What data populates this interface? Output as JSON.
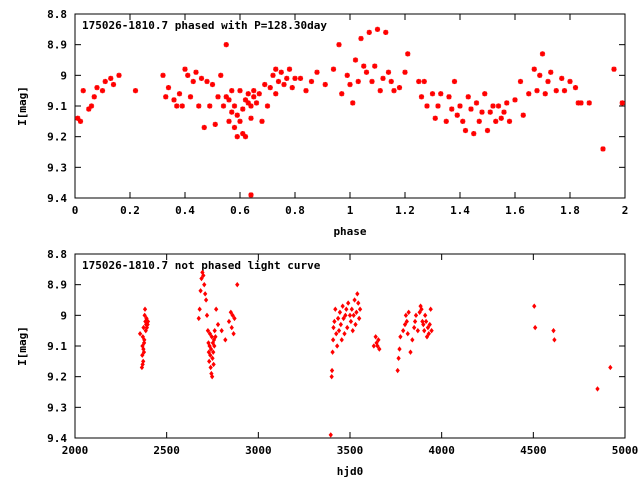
{
  "colors": {
    "points": "#ff0000",
    "axes": "#000000",
    "background": "#ffffff"
  },
  "chart_data": [
    {
      "type": "scatter",
      "title": "175026-1810.7 phased with P=128.30day",
      "xlabel": "phase",
      "ylabel": "I[mag]",
      "xlim": [
        0,
        2
      ],
      "ylim": [
        8.8,
        9.4
      ],
      "y_inverted": true,
      "grid": false,
      "xticks": [
        0,
        0.2,
        0.4,
        0.6,
        0.8,
        1,
        1.2,
        1.4,
        1.6,
        1.8,
        2
      ],
      "xtick_labels": [
        "0",
        "0.2",
        "0.4",
        "0.6",
        "0.8",
        "1",
        "1.2",
        "1.4",
        "1.6",
        "1.8",
        "2"
      ],
      "yticks": [
        8.8,
        8.9,
        9.0,
        9.1,
        9.2,
        9.3,
        9.4
      ],
      "ytick_labels": [
        "8.8",
        "8.9",
        "9",
        "9.1",
        "9.2",
        "9.3",
        "9.4"
      ],
      "marker": "star",
      "points": [
        [
          0.01,
          9.14
        ],
        [
          0.02,
          9.15
        ],
        [
          0.03,
          9.05
        ],
        [
          0.05,
          9.11
        ],
        [
          0.06,
          9.1
        ],
        [
          0.07,
          9.07
        ],
        [
          0.08,
          9.04
        ],
        [
          0.1,
          9.05
        ],
        [
          0.11,
          9.02
        ],
        [
          0.13,
          9.01
        ],
        [
          0.14,
          9.03
        ],
        [
          0.16,
          9.0
        ],
        [
          0.22,
          9.05
        ],
        [
          0.32,
          9.0
        ],
        [
          0.33,
          9.07
        ],
        [
          0.34,
          9.04
        ],
        [
          0.36,
          9.08
        ],
        [
          0.37,
          9.1
        ],
        [
          0.38,
          9.06
        ],
        [
          0.39,
          9.1
        ],
        [
          0.4,
          8.98
        ],
        [
          0.41,
          9.0
        ],
        [
          0.42,
          9.07
        ],
        [
          0.43,
          9.02
        ],
        [
          0.44,
          8.99
        ],
        [
          0.45,
          9.1
        ],
        [
          0.46,
          9.01
        ],
        [
          0.47,
          9.17
        ],
        [
          0.48,
          9.02
        ],
        [
          0.49,
          9.1
        ],
        [
          0.5,
          9.03
        ],
        [
          0.51,
          9.16
        ],
        [
          0.52,
          9.07
        ],
        [
          0.53,
          9.0
        ],
        [
          0.54,
          9.1
        ],
        [
          0.55,
          9.07
        ],
        [
          0.56,
          9.15
        ],
        [
          0.56,
          9.08
        ],
        [
          0.57,
          9.12
        ],
        [
          0.57,
          9.05
        ],
        [
          0.58,
          9.1
        ],
        [
          0.58,
          9.17
        ],
        [
          0.59,
          9.13
        ],
        [
          0.59,
          9.2
        ],
        [
          0.6,
          9.05
        ],
        [
          0.6,
          9.15
        ],
        [
          0.61,
          9.11
        ],
        [
          0.61,
          9.19
        ],
        [
          0.62,
          9.08
        ],
        [
          0.62,
          9.2
        ],
        [
          0.63,
          9.06
        ],
        [
          0.63,
          9.09
        ],
        [
          0.64,
          9.1
        ],
        [
          0.64,
          9.14
        ],
        [
          0.65,
          9.05
        ],
        [
          0.65,
          9.07
        ],
        [
          0.66,
          9.09
        ],
        [
          0.67,
          9.06
        ],
        [
          0.68,
          9.15
        ],
        [
          0.69,
          9.03
        ],
        [
          0.7,
          9.1
        ],
        [
          0.71,
          9.04
        ],
        [
          0.72,
          9.0
        ],
        [
          0.73,
          8.98
        ],
        [
          0.73,
          9.06
        ],
        [
          0.74,
          9.02
        ],
        [
          0.75,
          8.99
        ],
        [
          0.76,
          9.03
        ],
        [
          0.77,
          9.01
        ],
        [
          0.78,
          8.98
        ],
        [
          0.79,
          9.04
        ],
        [
          0.8,
          9.01
        ],
        [
          0.55,
          8.9
        ],
        [
          0.64,
          9.39
        ],
        [
          0.82,
          9.01
        ],
        [
          0.84,
          9.05
        ],
        [
          0.86,
          9.02
        ],
        [
          0.88,
          8.99
        ],
        [
          0.91,
          9.03
        ],
        [
          0.94,
          8.98
        ],
        [
          0.96,
          8.9
        ],
        [
          0.97,
          9.06
        ],
        [
          0.99,
          9.0
        ],
        [
          1.0,
          9.03
        ],
        [
          1.01,
          9.09
        ],
        [
          1.02,
          8.95
        ],
        [
          1.03,
          9.02
        ],
        [
          1.04,
          8.88
        ],
        [
          1.05,
          8.97
        ],
        [
          1.06,
          8.99
        ],
        [
          1.07,
          8.86
        ],
        [
          1.08,
          9.02
        ],
        [
          1.09,
          8.97
        ],
        [
          1.1,
          8.85
        ],
        [
          1.11,
          9.05
        ],
        [
          1.12,
          9.01
        ],
        [
          1.13,
          8.86
        ],
        [
          1.14,
          8.99
        ],
        [
          1.15,
          9.02
        ],
        [
          1.16,
          9.05
        ],
        [
          1.18,
          9.04
        ],
        [
          1.2,
          8.99
        ],
        [
          1.21,
          8.93
        ],
        [
          1.25,
          9.02
        ],
        [
          1.26,
          9.07
        ],
        [
          1.27,
          9.02
        ],
        [
          1.28,
          9.1
        ],
        [
          1.3,
          9.06
        ],
        [
          1.31,
          9.14
        ],
        [
          1.32,
          9.1
        ],
        [
          1.33,
          9.06
        ],
        [
          1.35,
          9.15
        ],
        [
          1.36,
          9.07
        ],
        [
          1.37,
          9.11
        ],
        [
          1.38,
          9.02
        ],
        [
          1.39,
          9.13
        ],
        [
          1.4,
          9.1
        ],
        [
          1.41,
          9.15
        ],
        [
          1.42,
          9.18
        ],
        [
          1.43,
          9.07
        ],
        [
          1.44,
          9.11
        ],
        [
          1.45,
          9.19
        ],
        [
          1.46,
          9.09
        ],
        [
          1.47,
          9.15
        ],
        [
          1.48,
          9.12
        ],
        [
          1.49,
          9.06
        ],
        [
          1.5,
          9.18
        ],
        [
          1.51,
          9.12
        ],
        [
          1.52,
          9.1
        ],
        [
          1.53,
          9.15
        ],
        [
          1.54,
          9.1
        ],
        [
          1.55,
          9.14
        ],
        [
          1.56,
          9.12
        ],
        [
          1.57,
          9.09
        ],
        [
          1.58,
          9.15
        ],
        [
          1.6,
          9.08
        ],
        [
          1.62,
          9.02
        ],
        [
          1.63,
          9.13
        ],
        [
          1.65,
          9.06
        ],
        [
          1.67,
          8.98
        ],
        [
          1.68,
          9.05
        ],
        [
          1.69,
          9.0
        ],
        [
          1.7,
          8.93
        ],
        [
          1.71,
          9.06
        ],
        [
          1.72,
          9.02
        ],
        [
          1.73,
          8.99
        ],
        [
          1.75,
          9.05
        ],
        [
          1.77,
          9.01
        ],
        [
          1.78,
          9.05
        ],
        [
          1.8,
          9.02
        ],
        [
          1.82,
          9.04
        ],
        [
          1.83,
          9.09
        ],
        [
          1.84,
          9.09
        ],
        [
          1.87,
          9.09
        ],
        [
          1.92,
          9.24
        ],
        [
          1.96,
          8.98
        ],
        [
          1.99,
          9.09
        ]
      ]
    },
    {
      "type": "scatter",
      "title": "175026-1810.7 not phased light curve",
      "xlabel": "hjd0",
      "ylabel": "I[mag]",
      "xlim": [
        2000,
        5000
      ],
      "ylim": [
        8.8,
        9.4
      ],
      "y_inverted": true,
      "grid": false,
      "xticks": [
        2000,
        2500,
        3000,
        3500,
        4000,
        4500,
        5000
      ],
      "xtick_labels": [
        "2000",
        "2500",
        "3000",
        "3500",
        "4000",
        "4500",
        "5000"
      ],
      "yticks": [
        8.8,
        8.9,
        9.0,
        9.1,
        9.2,
        9.3,
        9.4
      ],
      "ytick_labels": [
        "8.8",
        "8.9",
        "9",
        "9.1",
        "9.2",
        "9.3",
        "9.4"
      ],
      "marker": "diamond",
      "points": [
        [
          2355,
          9.06
        ],
        [
          2365,
          9.17
        ],
        [
          2367,
          9.13
        ],
        [
          2368,
          9.1
        ],
        [
          2370,
          9.07
        ],
        [
          2372,
          9.15
        ],
        [
          2374,
          9.04
        ],
        [
          2376,
          9.12
        ],
        [
          2378,
          9.08
        ],
        [
          2380,
          9.0
        ],
        [
          2382,
          8.98
        ],
        [
          2384,
          9.02
        ],
        [
          2386,
          9.05
        ],
        [
          2388,
          9.03
        ],
        [
          2390,
          9.01
        ],
        [
          2392,
          9.04
        ],
        [
          2394,
          9.02
        ],
        [
          2396,
          9.03
        ],
        [
          2398,
          9.02
        ],
        [
          2369,
          9.16
        ],
        [
          2373,
          9.11
        ],
        [
          2377,
          9.09
        ],
        [
          2675,
          9.01
        ],
        [
          2680,
          8.98
        ],
        [
          2685,
          8.92
        ],
        [
          2690,
          8.88
        ],
        [
          2695,
          8.86
        ],
        [
          2700,
          8.87
        ],
        [
          2705,
          8.9
        ],
        [
          2710,
          8.93
        ],
        [
          2715,
          8.95
        ],
        [
          2720,
          9.0
        ],
        [
          2725,
          9.05
        ],
        [
          2728,
          9.09
        ],
        [
          2730,
          9.12
        ],
        [
          2732,
          9.15
        ],
        [
          2734,
          9.1
        ],
        [
          2736,
          9.06
        ],
        [
          2738,
          9.13
        ],
        [
          2740,
          9.17
        ],
        [
          2742,
          9.11
        ],
        [
          2744,
          9.19
        ],
        [
          2746,
          9.07
        ],
        [
          2748,
          9.2
        ],
        [
          2750,
          9.14
        ],
        [
          2752,
          9.09
        ],
        [
          2754,
          9.12
        ],
        [
          2756,
          9.16
        ],
        [
          2758,
          9.08
        ],
        [
          2760,
          9.1
        ],
        [
          2762,
          9.05
        ],
        [
          2766,
          9.07
        ],
        [
          2770,
          8.98
        ],
        [
          2780,
          9.03
        ],
        [
          2800,
          9.05
        ],
        [
          2820,
          9.08
        ],
        [
          2840,
          9.02
        ],
        [
          2850,
          8.99
        ],
        [
          2855,
          9.04
        ],
        [
          2860,
          9.0
        ],
        [
          2865,
          9.06
        ],
        [
          2870,
          9.01
        ],
        [
          2885,
          8.9
        ],
        [
          3395,
          9.39
        ],
        [
          3400,
          9.2
        ],
        [
          3402,
          9.18
        ],
        [
          3405,
          9.12
        ],
        [
          3408,
          9.08
        ],
        [
          3410,
          9.04
        ],
        [
          3415,
          9.02
        ],
        [
          3420,
          8.98
        ],
        [
          3425,
          9.06
        ],
        [
          3430,
          9.1
        ],
        [
          3435,
          9.01
        ],
        [
          3440,
          9.05
        ],
        [
          3445,
          8.99
        ],
        [
          3450,
          9.03
        ],
        [
          3455,
          9.08
        ],
        [
          3460,
          8.97
        ],
        [
          3465,
          9.01
        ],
        [
          3470,
          9.06
        ],
        [
          3475,
          9.0
        ],
        [
          3480,
          8.98
        ],
        [
          3485,
          9.04
        ],
        [
          3490,
          8.96
        ],
        [
          3500,
          9.0
        ],
        [
          3505,
          9.02
        ],
        [
          3510,
          8.98
        ],
        [
          3515,
          9.05
        ],
        [
          3520,
          9.0
        ],
        [
          3525,
          8.95
        ],
        [
          3530,
          9.03
        ],
        [
          3535,
          8.99
        ],
        [
          3540,
          8.93
        ],
        [
          3545,
          8.96
        ],
        [
          3550,
          9.01
        ],
        [
          3555,
          8.98
        ],
        [
          3630,
          9.1
        ],
        [
          3640,
          9.07
        ],
        [
          3645,
          9.09
        ],
        [
          3650,
          9.1
        ],
        [
          3655,
          9.08
        ],
        [
          3660,
          9.11
        ],
        [
          3760,
          9.18
        ],
        [
          3765,
          9.14
        ],
        [
          3770,
          9.11
        ],
        [
          3775,
          9.07
        ],
        [
          3790,
          9.05
        ],
        [
          3800,
          9.03
        ],
        [
          3805,
          9.0
        ],
        [
          3810,
          9.02
        ],
        [
          3815,
          9.06
        ],
        [
          3820,
          8.99
        ],
        [
          3830,
          9.12
        ],
        [
          3840,
          9.08
        ],
        [
          3850,
          9.04
        ],
        [
          3855,
          9.02
        ],
        [
          3860,
          9.0
        ],
        [
          3870,
          9.05
        ],
        [
          3880,
          8.99
        ],
        [
          3885,
          8.97
        ],
        [
          3890,
          8.98
        ],
        [
          3895,
          9.02
        ],
        [
          3900,
          9.03
        ],
        [
          3905,
          9.05
        ],
        [
          3910,
          9.0
        ],
        [
          3915,
          9.02
        ],
        [
          3920,
          9.07
        ],
        [
          3925,
          9.04
        ],
        [
          3930,
          9.06
        ],
        [
          3935,
          9.03
        ],
        [
          3940,
          8.98
        ],
        [
          3945,
          9.05
        ],
        [
          4505,
          8.97
        ],
        [
          4510,
          9.04
        ],
        [
          4610,
          9.05
        ],
        [
          4615,
          9.08
        ],
        [
          4850,
          9.24
        ],
        [
          4920,
          9.17
        ]
      ]
    }
  ]
}
